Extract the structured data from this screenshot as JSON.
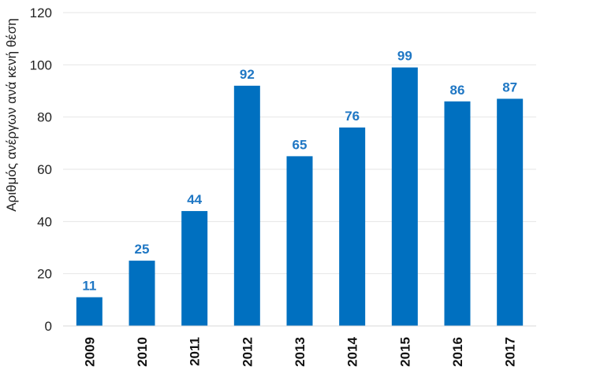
{
  "chart_data": {
    "type": "bar",
    "title": "",
    "xlabel": "",
    "ylabel": "Αριθμός ανέργων ανά κενή θέση",
    "categories": [
      "2009",
      "2010",
      "2011",
      "2012",
      "2013",
      "2014",
      "2015",
      "2016",
      "2017"
    ],
    "values": [
      11,
      25,
      44,
      92,
      65,
      76,
      99,
      86,
      87
    ],
    "ylim": [
      0,
      120
    ],
    "yticks": [
      0,
      20,
      40,
      60,
      80,
      100,
      120
    ],
    "grid": true,
    "legend": "none",
    "bar_color": "#0070C0",
    "label_color": "#1F77C4",
    "grid_color": "#E6E6E6"
  }
}
